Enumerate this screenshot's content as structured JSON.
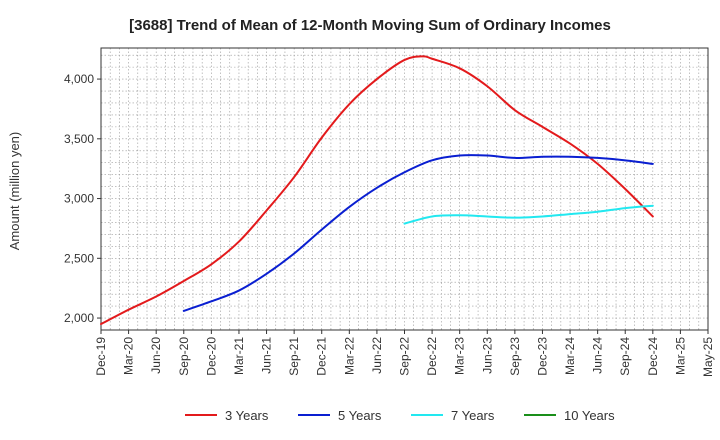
{
  "chart_data": {
    "type": "line",
    "title": "[3688]  Trend of Mean of 12-Month Moving Sum of Ordinary Incomes",
    "xlabel": "",
    "ylabel": "Amount (million yen)",
    "ylim": [
      1900,
      4260
    ],
    "yticks": [
      2000,
      2500,
      3000,
      3500,
      4000
    ],
    "ytick_labels": [
      "2,000",
      "2,500",
      "3,000",
      "3,500",
      "4,000"
    ],
    "xlim": [
      0,
      66
    ],
    "xticks": [
      0,
      3,
      6,
      9,
      12,
      15,
      18,
      21,
      24,
      27,
      30,
      33,
      36,
      39,
      42,
      45,
      48,
      51,
      54,
      57,
      60,
      63,
      66
    ],
    "xtick_labels": [
      "Dec-19",
      "Mar-20",
      "Jun-20",
      "Sep-20",
      "Dec-20",
      "Mar-21",
      "Jun-21",
      "Sep-21",
      "Dec-21",
      "Mar-22",
      "Jun-22",
      "Sep-22",
      "Dec-22",
      "Mar-23",
      "Jun-23",
      "Sep-23",
      "Dec-23",
      "Mar-24",
      "Jun-24",
      "Sep-24",
      "Dec-24",
      "Mar-25",
      "May-25"
    ],
    "grid": true,
    "legend_position": "bottom",
    "series": [
      {
        "name": "3 Years",
        "color": "#e31a1c",
        "x": [
          0,
          3,
          6,
          9,
          12,
          15,
          18,
          21,
          24,
          27,
          30,
          33,
          35,
          36,
          39,
          42,
          45,
          48,
          51,
          54,
          57,
          60
        ],
        "values": [
          1950,
          2070,
          2180,
          2310,
          2450,
          2640,
          2900,
          3180,
          3510,
          3790,
          4000,
          4160,
          4190,
          4170,
          4090,
          3940,
          3740,
          3600,
          3460,
          3290,
          3080,
          2850
        ]
      },
      {
        "name": "5 Years",
        "color": "#0a1fd1",
        "x": [
          9,
          12,
          15,
          18,
          21,
          24,
          27,
          30,
          33,
          36,
          39,
          42,
          45,
          48,
          51,
          54,
          57,
          60
        ],
        "values": [
          2060,
          2140,
          2230,
          2370,
          2540,
          2740,
          2930,
          3090,
          3220,
          3320,
          3360,
          3360,
          3340,
          3350,
          3350,
          3340,
          3320,
          3290
        ]
      },
      {
        "name": "7 Years",
        "color": "#22e8f0",
        "x": [
          33,
          36,
          39,
          42,
          45,
          48,
          51,
          54,
          57,
          60
        ],
        "values": [
          2790,
          2850,
          2860,
          2850,
          2840,
          2850,
          2870,
          2890,
          2920,
          2940
        ]
      },
      {
        "name": "10 Years",
        "color": "#1a8f1a",
        "x": [],
        "values": []
      }
    ]
  }
}
